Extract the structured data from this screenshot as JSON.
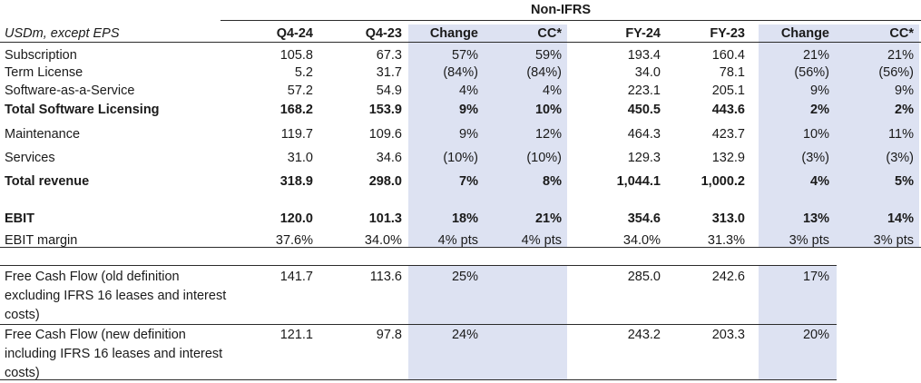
{
  "header": {
    "group_title": "Non-IFRS",
    "unit_label": "USDm, except EPS",
    "columns": [
      "Q4-24",
      "Q4-23",
      "Change",
      "CC*",
      "FY-24",
      "FY-23",
      "Change",
      "CC*"
    ]
  },
  "rows": [
    {
      "label": "Subscription",
      "values": [
        "105.8",
        "67.3",
        "57%",
        "59%",
        "193.4",
        "160.4",
        "21%",
        "21%"
      ]
    },
    {
      "label": "Term License",
      "values": [
        "5.2",
        "31.7",
        "(84%)",
        "(84%)",
        "34.0",
        "78.1",
        "(56%)",
        "(56%)"
      ]
    },
    {
      "label": "Software-as-a-Service",
      "values": [
        "57.2",
        "54.9",
        "4%",
        "4%",
        "223.1",
        "205.1",
        "9%",
        "9%"
      ]
    },
    {
      "label": "Total Software Licensing",
      "values": [
        "168.2",
        "153.9",
        "9%",
        "10%",
        "450.5",
        "443.6",
        "2%",
        "2%"
      ]
    },
    {
      "label": "Maintenance",
      "values": [
        "119.7",
        "109.6",
        "9%",
        "12%",
        "464.3",
        "423.7",
        "10%",
        "11%"
      ]
    },
    {
      "label": "Services",
      "values": [
        "31.0",
        "34.6",
        "(10%)",
        "(10%)",
        "129.3",
        "132.9",
        "(3%)",
        "(3%)"
      ]
    },
    {
      "label": "Total revenue",
      "values": [
        "318.9",
        "298.0",
        "7%",
        "8%",
        "1,044.1",
        "1,000.2",
        "4%",
        "5%"
      ]
    },
    {
      "label": "EBIT",
      "values": [
        "120.0",
        "101.3",
        "18%",
        "21%",
        "354.6",
        "313.0",
        "13%",
        "14%"
      ]
    },
    {
      "label": "EBIT margin",
      "values": [
        "37.6%",
        "34.0%",
        "4% pts",
        "4% pts",
        "34.0%",
        "31.3%",
        "3% pts",
        "3% pts"
      ]
    }
  ],
  "fcf_rows": [
    {
      "label": "Free Cash Flow (old definition excluding IFRS 16 leases and interest costs)",
      "values": [
        "141.7",
        "113.6",
        "25%",
        "",
        "285.0",
        "242.6",
        "17%",
        ""
      ]
    },
    {
      "label": "Free Cash Flow (new definition including IFRS 16 leases and interest costs)",
      "values": [
        "121.1",
        "97.8",
        "24%",
        "",
        "243.2",
        "203.3",
        "20%",
        ""
      ]
    }
  ],
  "colors": {
    "shade": "#dde2f2",
    "rule": "#2b2b2b",
    "text": "#1a1a1a"
  }
}
